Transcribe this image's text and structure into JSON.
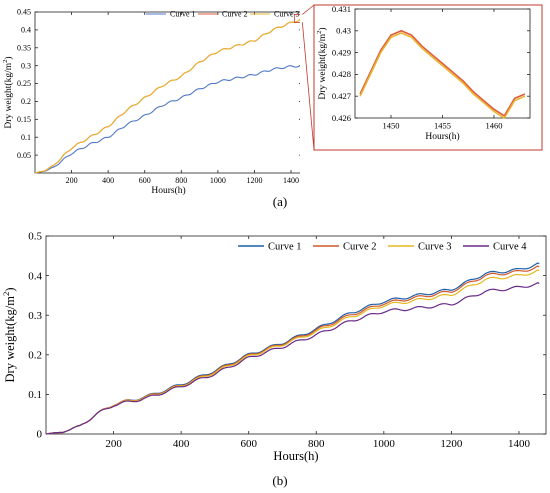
{
  "captions": {
    "a": "(a)",
    "b": "(b)"
  },
  "chart_data": [
    {
      "type": "line",
      "xlabel": "Hours(h)",
      "ylabel": "Dry weight(kg/m",
      "ylabel_sup": "2",
      "ylabel_tail": ")",
      "xlim": [
        0,
        1460
      ],
      "ylim": [
        0,
        0.45
      ],
      "xticks": [
        200,
        400,
        600,
        800,
        1000,
        1200,
        1400
      ],
      "yticks": [
        0.05,
        0.1,
        0.15,
        0.2,
        0.25,
        0.3,
        0.35,
        0.4,
        0.45
      ],
      "grid": false,
      "legend_position": "top-center",
      "x": [
        0,
        50,
        100,
        150,
        200,
        300,
        400,
        500,
        600,
        700,
        800,
        900,
        1000,
        1100,
        1200,
        1300,
        1400,
        1460
      ],
      "series": [
        {
          "name": "Curve 1",
          "color": "#4e79c8",
          "values": [
            0,
            0.005,
            0.015,
            0.035,
            0.055,
            0.08,
            0.1,
            0.135,
            0.16,
            0.19,
            0.21,
            0.235,
            0.255,
            0.265,
            0.275,
            0.29,
            0.298,
            0.299
          ]
        },
        {
          "name": "Curve 2",
          "color": "#e05a3a",
          "values": [
            0,
            0.006,
            0.02,
            0.045,
            0.07,
            0.1,
            0.13,
            0.175,
            0.21,
            0.245,
            0.27,
            0.31,
            0.34,
            0.355,
            0.37,
            0.4,
            0.42,
            0.43
          ]
        },
        {
          "name": "Curve 3",
          "color": "#e8b530",
          "values": [
            0,
            0.006,
            0.02,
            0.045,
            0.07,
            0.1,
            0.13,
            0.175,
            0.21,
            0.245,
            0.27,
            0.31,
            0.34,
            0.355,
            0.37,
            0.4,
            0.42,
            0.43
          ]
        }
      ]
    },
    {
      "type": "line",
      "xlabel": "Hours(h)",
      "ylabel": "Dry weight(kg/m",
      "ylabel_sup": "2",
      "ylabel_tail": ")",
      "xlim": [
        1446.5,
        1463.5
      ],
      "ylim": [
        0.426,
        0.431
      ],
      "xticks": [
        1450,
        1455,
        1460
      ],
      "yticks": [
        0.426,
        0.427,
        0.428,
        0.429,
        0.43,
        0.431
      ],
      "grid": false,
      "x": [
        1447,
        1448,
        1449,
        1450,
        1451,
        1452,
        1453,
        1454,
        1455,
        1456,
        1457,
        1458,
        1459,
        1460,
        1461,
        1462,
        1463
      ],
      "series": [
        {
          "name": "Curve 2",
          "color": "#e05a3a",
          "values": [
            0.4271,
            0.4281,
            0.4291,
            0.4298,
            0.43,
            0.4298,
            0.4293,
            0.4289,
            0.4285,
            0.4281,
            0.4277,
            0.4272,
            0.4268,
            0.4264,
            0.4261,
            0.4269,
            0.4271
          ]
        },
        {
          "name": "Curve 3",
          "color": "#e8b530",
          "values": [
            0.427,
            0.428,
            0.429,
            0.4297,
            0.4299,
            0.4297,
            0.4292,
            0.4288,
            0.4284,
            0.428,
            0.4276,
            0.4271,
            0.4267,
            0.4263,
            0.426,
            0.4268,
            0.427
          ]
        }
      ]
    },
    {
      "type": "line",
      "xlabel": "Hours(h)",
      "ylabel": "Dry weight(kg/m",
      "ylabel_sup": "2",
      "ylabel_tail": ")",
      "xlim": [
        0,
        1480
      ],
      "ylim": [
        0,
        0.5
      ],
      "xticks": [
        200,
        400,
        600,
        800,
        1000,
        1200,
        1400
      ],
      "yticks": [
        0,
        0.1,
        0.2,
        0.3,
        0.4,
        0.5
      ],
      "grid": false,
      "legend_position": "top-right",
      "x": [
        0,
        50,
        100,
        150,
        200,
        300,
        400,
        500,
        600,
        700,
        800,
        900,
        1000,
        1100,
        1200,
        1300,
        1400,
        1460
      ],
      "series": [
        {
          "name": "Curve 1",
          "color": "#1f5fa8",
          "values": [
            0,
            0.005,
            0.02,
            0.05,
            0.075,
            0.095,
            0.125,
            0.16,
            0.2,
            0.23,
            0.265,
            0.305,
            0.335,
            0.35,
            0.365,
            0.405,
            0.415,
            0.43
          ]
        },
        {
          "name": "Curve 2",
          "color": "#d2582c",
          "values": [
            0,
            0.005,
            0.02,
            0.05,
            0.075,
            0.094,
            0.123,
            0.158,
            0.198,
            0.228,
            0.262,
            0.3,
            0.33,
            0.345,
            0.36,
            0.4,
            0.41,
            0.422
          ]
        },
        {
          "name": "Curve 3",
          "color": "#e6b820",
          "values": [
            0,
            0.005,
            0.02,
            0.05,
            0.074,
            0.093,
            0.122,
            0.156,
            0.196,
            0.226,
            0.258,
            0.295,
            0.325,
            0.338,
            0.352,
            0.39,
            0.4,
            0.412
          ]
        },
        {
          "name": "Curve 4",
          "color": "#6a2a8a",
          "values": [
            0,
            0.005,
            0.02,
            0.05,
            0.073,
            0.091,
            0.12,
            0.152,
            0.192,
            0.22,
            0.25,
            0.285,
            0.31,
            0.318,
            0.328,
            0.36,
            0.37,
            0.38
          ]
        }
      ]
    }
  ]
}
